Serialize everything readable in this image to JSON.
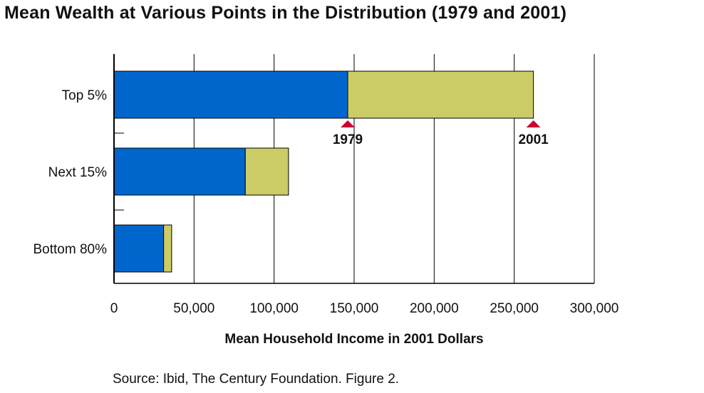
{
  "title": "Mean Wealth at Various Points in the Distribution (1979 and 2001)",
  "source": "Source: Ibid, The Century Foundation.  Figure 2.",
  "colors": {
    "base_1979": "#0066cc",
    "increase_2001": "#cccc66",
    "marker": "#cc0033",
    "grid": "#000000"
  },
  "chart_data": {
    "type": "bar",
    "orientation": "horizontal",
    "stacked": true,
    "categories": [
      "Top 5%",
      "Next 15%",
      "Bottom 80%"
    ],
    "series": [
      {
        "values": [
          146000,
          82000,
          31000
        ]
      },
      {
        "values": [
          116000,
          27000,
          5000
        ]
      }
    ],
    "xlabel": "Mean Household Income in 2001 Dollars",
    "xlim": [
      0,
      300000
    ],
    "xticks": [
      0,
      50000,
      100000,
      150000,
      200000,
      250000,
      300000
    ],
    "xtick_labels": [
      "0",
      "50,000",
      "100,000",
      "150,000",
      "200,000",
      "250,000",
      "300,000"
    ],
    "grid": true,
    "annotations": [
      {
        "text": "1979",
        "category": "Top 5%",
        "x": 146000
      },
      {
        "text": "2001",
        "category": "Top 5%",
        "x": 262000
      }
    ]
  }
}
